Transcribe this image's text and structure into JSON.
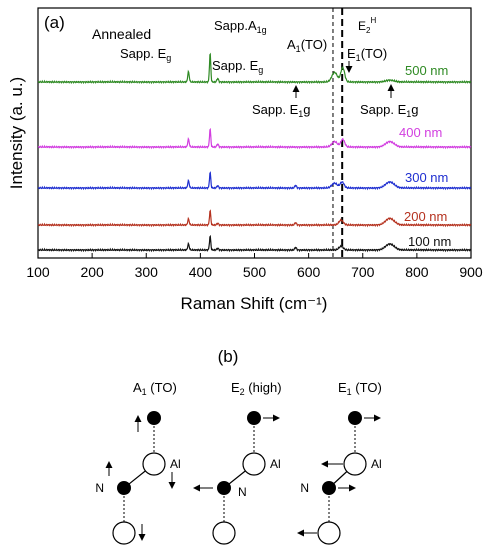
{
  "chart_data": {
    "type": "line",
    "panel_label": "(a)",
    "xlabel": "Raman Shift (cm⁻¹)",
    "ylabel": "Intensity (a. u.)",
    "xlim": [
      100,
      900
    ],
    "x_ticks": [
      "100",
      "200",
      "300",
      "400",
      "500",
      "600",
      "700",
      "800",
      "900"
    ],
    "series": [
      {
        "name": "100 nm",
        "color": "#111111",
        "peaks": [
          [
            378,
            1.0
          ],
          [
            418,
            2.3
          ],
          [
            432,
            0.3
          ],
          [
            576,
            0.45
          ],
          [
            660,
            0.6
          ],
          [
            750,
            1.0
          ]
        ]
      },
      {
        "name": "200 nm",
        "color": "#b5321f",
        "peaks": [
          [
            378,
            1.0
          ],
          [
            418,
            2.4
          ],
          [
            432,
            0.3
          ],
          [
            576,
            0.4
          ],
          [
            660,
            0.8
          ],
          [
            750,
            1.1
          ]
        ]
      },
      {
        "name": "300 nm",
        "color": "#1f2fd0",
        "peaks": [
          [
            378,
            1.2
          ],
          [
            418,
            2.6
          ],
          [
            432,
            0.4
          ],
          [
            576,
            0.45
          ],
          [
            648,
            0.8
          ],
          [
            662,
            1.0
          ],
          [
            750,
            1.0
          ]
        ]
      },
      {
        "name": "400 nm",
        "color": "#d23ee0",
        "peaks": [
          [
            378,
            1.3
          ],
          [
            418,
            3.0
          ],
          [
            432,
            0.5
          ],
          [
            648,
            0.9
          ],
          [
            663,
            1.3
          ],
          [
            750,
            0.9
          ]
        ]
      },
      {
        "name": "500 nm",
        "color": "#2f8a24",
        "peaks": [
          [
            378,
            1.7
          ],
          [
            418,
            4.8
          ],
          [
            432,
            0.6
          ],
          [
            648,
            1.6
          ],
          [
            663,
            2.4
          ],
          [
            750,
            0.3
          ]
        ]
      }
    ],
    "annotations": {
      "annealed": "Annealed",
      "sapp_eg_left": "Sapp. E",
      "sapp_eg_left_sub": "g",
      "sapp_a1g": "Sapp.A",
      "sapp_a1g_sub": "1g",
      "sapp_eg_right": "Sapp. E",
      "sapp_eg_right_sub": "g",
      "a1to_1": "A",
      "a1to_sub": "1",
      "a1to_2": "(TO)",
      "e1to_1": "E",
      "e1to_sub": "1",
      "e1to_2": "(TO)",
      "e2h_1": "E",
      "e2h_sub": "2",
      "e2h_sup": "H",
      "sapp_e1g_left": "Sapp. E",
      "sapp_e1g_left_sub": "1",
      "sapp_e1g_left_tail": "g",
      "sapp_e1g_right": "Sapp. E",
      "sapp_e1g_right_sub": "1",
      "sapp_e1g_right_tail": "g"
    },
    "dashed_lines_x": [
      645,
      662
    ]
  },
  "diagram": {
    "panel_label": "(b)",
    "modes": [
      {
        "label": "A",
        "sub": "1",
        "tail": " (TO)"
      },
      {
        "label": "E",
        "sub": "2",
        "tail": " (high)"
      },
      {
        "label": "E",
        "sub": "1",
        "tail": " (TO)"
      }
    ],
    "atom_al": "Al",
    "atom_n": "N"
  }
}
